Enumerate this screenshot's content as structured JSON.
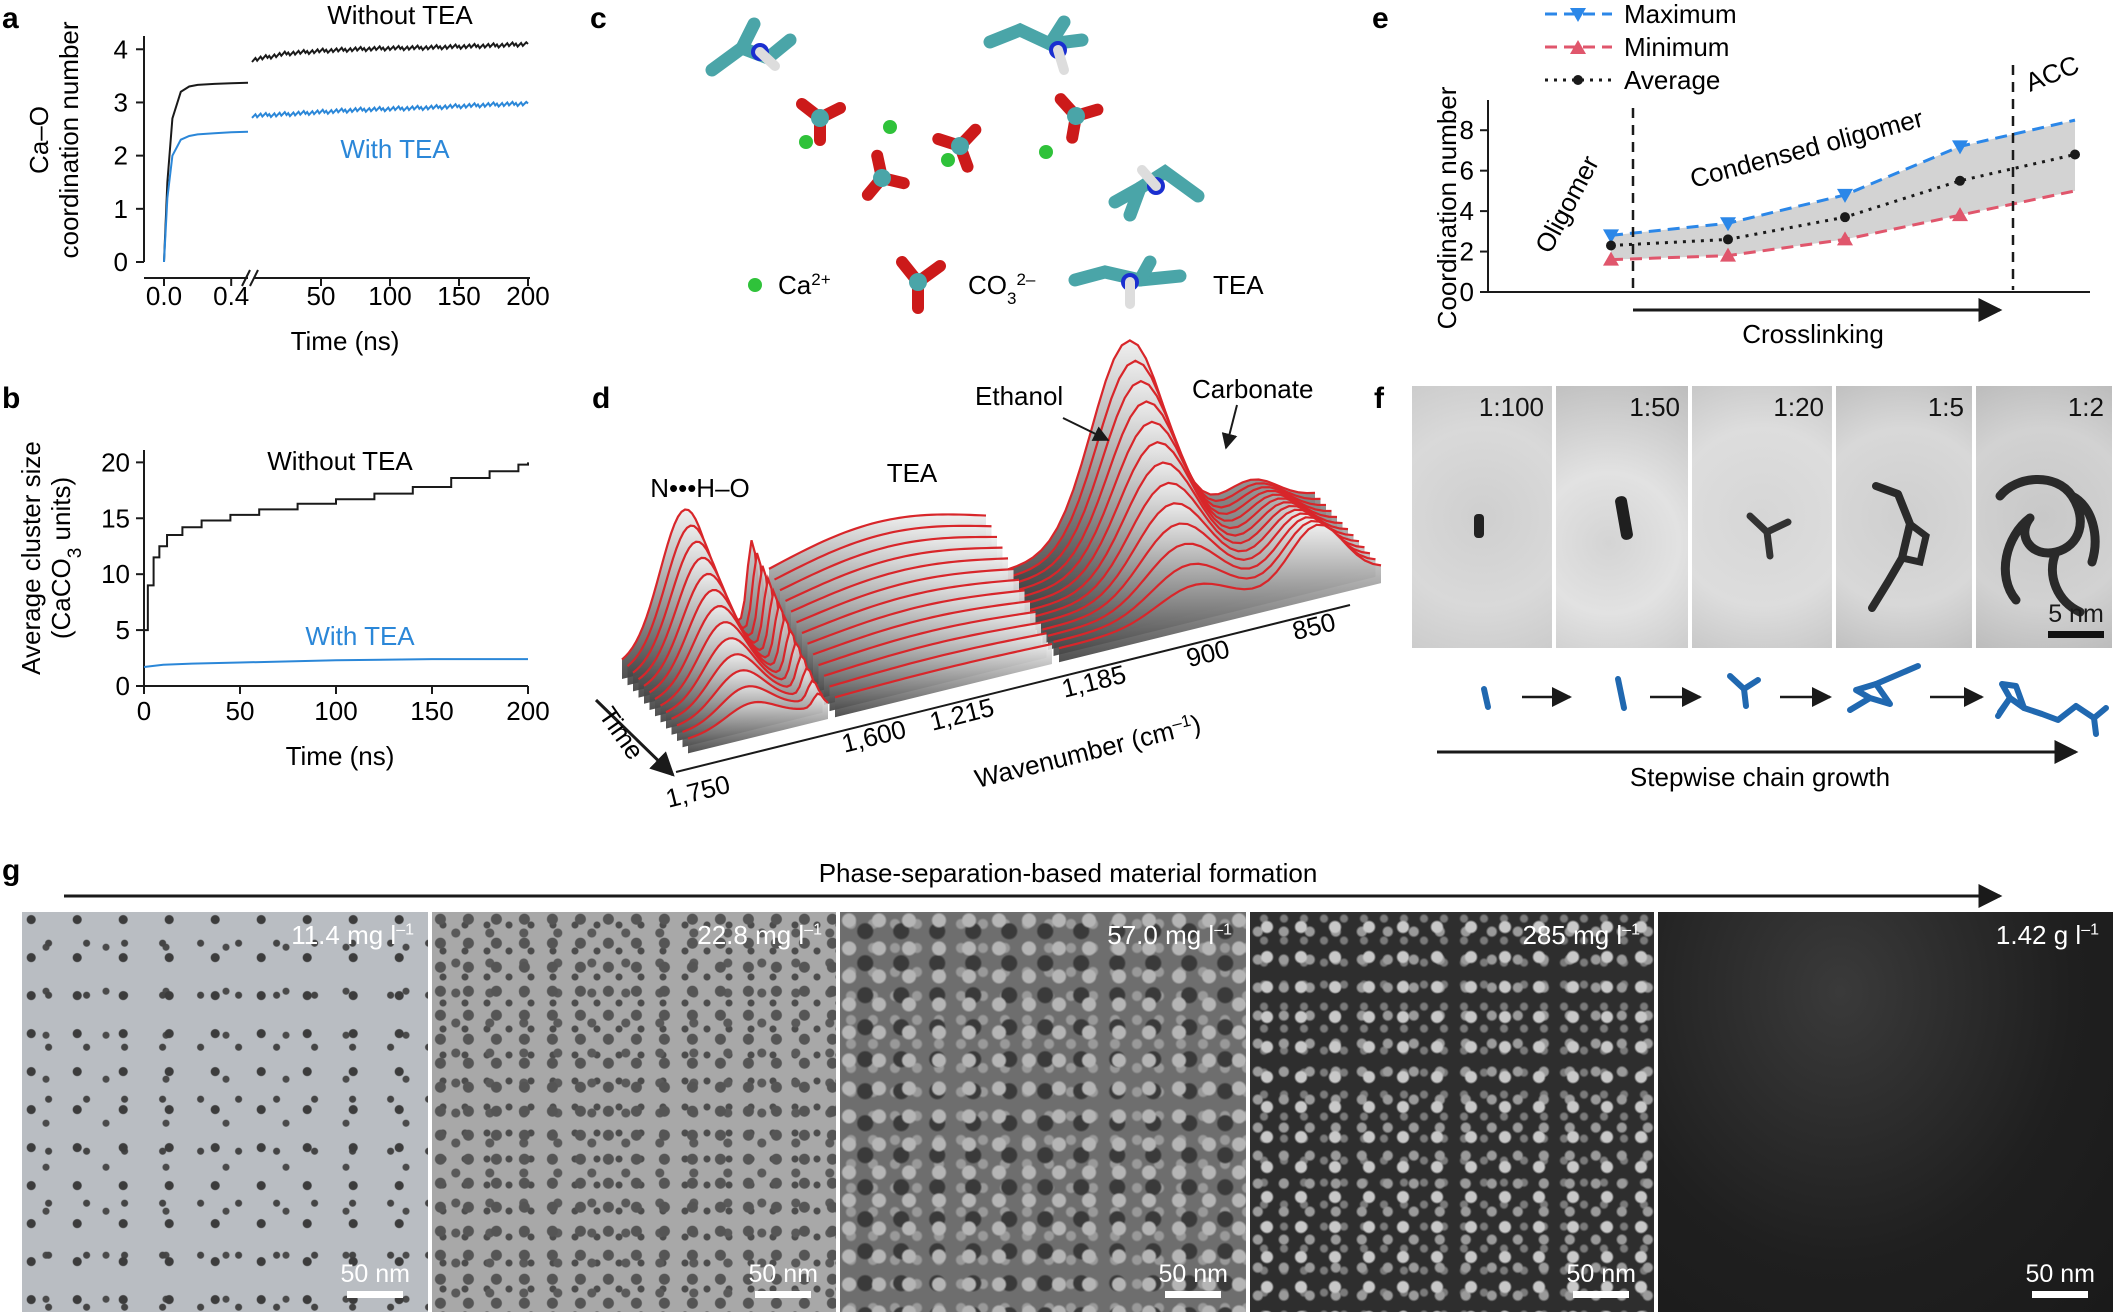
{
  "panels": {
    "a": {
      "letter": "a",
      "ylabel_line1": "Ca–O",
      "ylabel_line2": "coordination number",
      "xlabel": "Time (ns)",
      "series_labels": [
        "Without TEA",
        "With TEA"
      ],
      "yticks": [
        "0",
        "1",
        "2",
        "3",
        "4"
      ],
      "xticks_left": [
        "0.0",
        "0.4"
      ],
      "xticks_right": [
        "50",
        "100",
        "150",
        "200"
      ]
    },
    "b": {
      "letter": "b",
      "ylabel_line1": "Average cluster size",
      "ylabel_line2_pre": "(CaCO",
      "ylabel_line2_sub": "3",
      "ylabel_line2_post": " units)",
      "xlabel": "Time (ns)",
      "series_labels": [
        "Without TEA",
        "With TEA"
      ],
      "yticks": [
        "0",
        "5",
        "10",
        "15",
        "20"
      ],
      "xticks": [
        "0",
        "50",
        "100",
        "150",
        "200"
      ]
    },
    "c": {
      "letter": "c",
      "legend_ca": "Ca",
      "legend_ca_sup": "2+",
      "legend_co3": "CO",
      "legend_co3_sub": "3",
      "legend_co3_sup": "2–",
      "legend_tea": "TEA"
    },
    "d": {
      "letter": "d",
      "labels": [
        "N•••H–O",
        "TEA",
        "Ethanol",
        "Carbonate"
      ],
      "axis_time": "Time",
      "xlabel": "Wavenumber (cm",
      "xlabel_sup": "–1",
      "xlabel_close": ")",
      "xticks": [
        "1,750",
        "1,600",
        "1,215",
        "1,185",
        "900",
        "850"
      ]
    },
    "e": {
      "letter": "e",
      "legend": [
        "Maximum",
        "Minimum",
        "Average"
      ],
      "ylabel": "Coordination number",
      "yticks": [
        "0",
        "2",
        "4",
        "6",
        "8"
      ],
      "stage_labels": [
        "Oligomer",
        "Condensed oligomer",
        "ACC"
      ],
      "arrow_label": "Crosslinking"
    },
    "f": {
      "letter": "f",
      "ratios": [
        "1:100",
        "1:50",
        "1:20",
        "1:5",
        "1:2"
      ],
      "scale_bar": "5 nm",
      "arrow_label": "Stepwise chain growth"
    },
    "g": {
      "letter": "g",
      "arrow_label": "Phase-separation-based material formation",
      "images": [
        {
          "conc": "11.4 mg l",
          "sup": "–1",
          "scale": "50 nm"
        },
        {
          "conc": "22.8 mg l",
          "sup": "–1",
          "scale": "50 nm"
        },
        {
          "conc": "57.0 mg l",
          "sup": "–1",
          "scale": "50 nm"
        },
        {
          "conc": "285 mg l",
          "sup": "–1",
          "scale": "50 nm"
        },
        {
          "conc": "1.42 g l",
          "sup": "–1",
          "scale": "50 nm"
        }
      ]
    }
  },
  "chart_data": [
    {
      "panel": "a",
      "type": "line",
      "ylabel": "Ca–O coordination number",
      "xlabel": "Time (ns)",
      "xaxis": "broken: 0.0–0.5 ns then 0–200 ns",
      "ylim": [
        0,
        4.4
      ],
      "series": [
        {
          "name": "Without TEA",
          "segment_short": {
            "x": [
              0.0,
              0.02,
              0.05,
              0.1,
              0.15,
              0.2,
              0.3,
              0.4,
              0.5
            ],
            "y": [
              0.0,
              1.5,
              2.7,
              3.2,
              3.3,
              3.33,
              3.35,
              3.36,
              3.37
            ]
          },
          "segment_long": {
            "x": [
              0,
              25,
              50,
              75,
              100,
              125,
              150,
              175,
              200
            ],
            "y": [
              3.8,
              3.92,
              3.97,
              4.0,
              4.02,
              4.03,
              4.05,
              4.07,
              4.1
            ]
          }
        },
        {
          "name": "With TEA",
          "segment_short": {
            "x": [
              0.0,
              0.02,
              0.05,
              0.1,
              0.15,
              0.2,
              0.3,
              0.4,
              0.5
            ],
            "y": [
              0.0,
              1.2,
              2.0,
              2.3,
              2.37,
              2.4,
              2.42,
              2.44,
              2.45
            ]
          },
          "segment_long": {
            "x": [
              0,
              25,
              50,
              75,
              100,
              125,
              150,
              175,
              200
            ],
            "y": [
              2.75,
              2.78,
              2.82,
              2.86,
              2.88,
              2.9,
              2.93,
              2.96,
              2.98
            ]
          }
        }
      ]
    },
    {
      "panel": "b",
      "type": "line",
      "ylabel": "Average cluster size (CaCO3 units)",
      "xlabel": "Time (ns)",
      "xlim": [
        0,
        200
      ],
      "ylim": [
        0,
        22
      ],
      "series": [
        {
          "name": "Without TEA",
          "x": [
            0,
            2,
            5,
            8,
            12,
            20,
            30,
            45,
            60,
            80,
            100,
            120,
            140,
            160,
            180,
            195,
            200
          ],
          "y": [
            5,
            9,
            11.5,
            12.5,
            13.5,
            14.2,
            14.8,
            15.3,
            15.8,
            16.3,
            16.7,
            17.2,
            17.8,
            18.6,
            19.2,
            19.8,
            20
          ]
        },
        {
          "name": "With TEA",
          "x": [
            0,
            10,
            25,
            50,
            100,
            150,
            200
          ],
          "y": [
            1.7,
            1.9,
            2.0,
            2.1,
            2.3,
            2.4,
            2.4
          ]
        }
      ]
    },
    {
      "panel": "e",
      "type": "line",
      "ylabel": "Coordination number",
      "ylim": [
        0,
        9
      ],
      "series": [
        {
          "name": "Maximum",
          "x": [
            0,
            1,
            2,
            3,
            4
          ],
          "y": [
            2.8,
            3.4,
            4.8,
            7.2,
            8.5
          ]
        },
        {
          "name": "Minimum",
          "x": [
            0,
            1,
            2,
            3,
            4
          ],
          "y": [
            1.6,
            1.8,
            2.6,
            3.8,
            5.0
          ]
        },
        {
          "name": "Average",
          "x": [
            0,
            1,
            2,
            3,
            4
          ],
          "y": [
            2.3,
            2.6,
            3.7,
            5.5,
            6.8
          ]
        }
      ]
    }
  ],
  "colors": {
    "black_series": "#1a1a1a",
    "blue_series": "#2b87d8",
    "max_series": "#2b87e8",
    "min_series": "#e0566c",
    "ir_trace": "#d8262a"
  }
}
